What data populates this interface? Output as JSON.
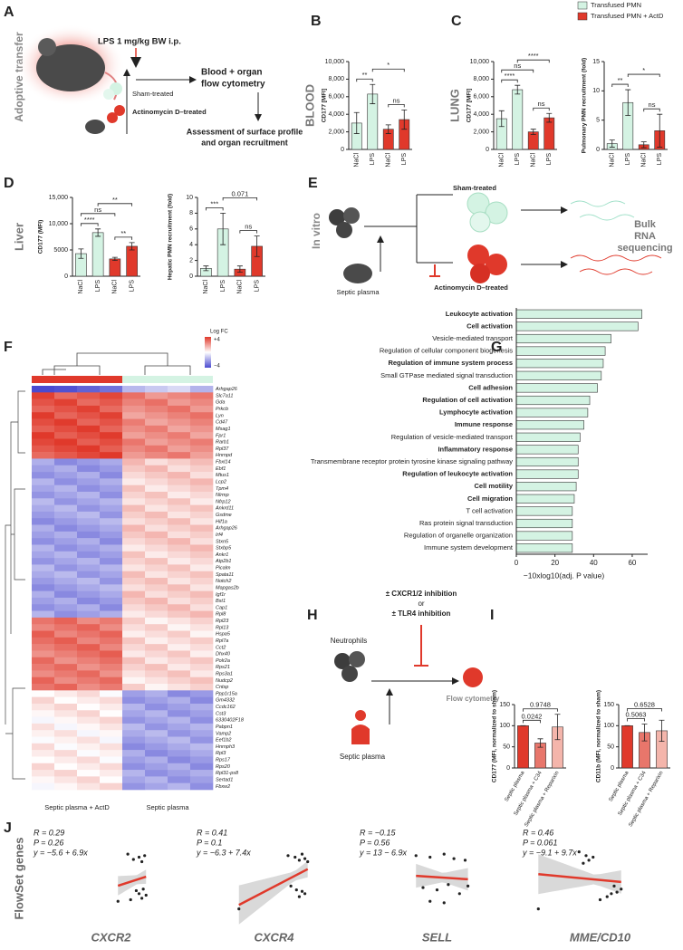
{
  "panel_labels": [
    "A",
    "B",
    "C",
    "D",
    "E",
    "F",
    "G",
    "H",
    "I",
    "J"
  ],
  "legend": {
    "series": [
      {
        "name": "Transfused PMN",
        "color": "#d4f3e3"
      },
      {
        "name": "Transfused PMN + ActD",
        "color": "#e0392b"
      }
    ]
  },
  "schematic_a": {
    "side_title": "Adoptive transfer",
    "injection": "LPS 1 mg/kg BW i.p.",
    "readout": [
      "Blood + organ",
      "flow cytometry"
    ],
    "sham": "Sham-treated",
    "actd": "Actinomycin D–treated",
    "assessment": [
      "Assessment of surface profile",
      "and organ recruitment"
    ]
  },
  "schematic_e": {
    "side_title": "In vitro",
    "sham": "Sham-treated",
    "plasma": "Septic plasma",
    "actd": "Actinomycin D–treated",
    "result": [
      "Bulk",
      "RNA",
      "sequencing"
    ]
  },
  "heatmap": {
    "legend_title": "Log FC",
    "legend_max": "+4",
    "legend_min": "−4",
    "genes": [
      "Arhgap26",
      "Slc7a11",
      "Gda",
      "Prkcb",
      "Lyn",
      "Cd47",
      "Msag1",
      "Fpr1",
      "Rarb1",
      "Rpl37",
      "Hnrnpd",
      "Fbxl14",
      "Ebf1",
      "Mtus1",
      "Lcp2",
      "Tpm4",
      "Nlrmp",
      "Nfrp12",
      "Ankrd11",
      "Gsdme",
      "Hif1a",
      "Arhgap26",
      "Irf4",
      "Stxn5",
      "Stxbp5",
      "Ankr1",
      "Atp2b1",
      "Picalm",
      "Spata11",
      "Notch2",
      "Mapgas2b",
      "Igf1r",
      "Bst1",
      "Cap1",
      "Rpl8",
      "Rpl23",
      "Rpl13",
      "Hspa5",
      "Rpl7a",
      "Cct2",
      "Dhx40",
      "Polr2a",
      "Rps21",
      "Rps3a1",
      "Nudcp2",
      "Cntsp",
      "Ppp1r15a",
      "Gm4332",
      "Ccdc162",
      "Cst3",
      "6330402F18",
      "Pabpn1",
      "Vamp2",
      "Eef1b2",
      "Hnrnph3",
      "Rpl3",
      "Rps17",
      "Rps20",
      "Rpl31-ps8",
      "Sertad1",
      "Fbxw2"
    ],
    "groups": [
      "Septic plasma + ActD",
      "Septic plasma"
    ]
  },
  "schematic_h": {
    "treatment": [
      "± CXCR1/2 inhibition",
      "or",
      "± TLR4 inhibition"
    ],
    "cells": "Neutrophils",
    "plasma": "Septic plasma",
    "readout": "Flow cytometry"
  },
  "scatter_ylabel": "FlowSet genes",
  "chart_data": [
    {
      "type": "bar",
      "title": "BLOOD",
      "ylabel": "CD177 [MFI]",
      "categories": [
        "NaCl",
        "LPS",
        "NaCl",
        "LPS"
      ],
      "values": [
        3000,
        6300,
        2300,
        3400
      ],
      "errors": [
        1200,
        1100,
        500,
        1100
      ],
      "colors": [
        "#d4f3e3",
        "#d4f3e3",
        "#e0392b",
        "#e0392b"
      ],
      "ylim": [
        0,
        10000
      ],
      "yticks": [
        0,
        {
          "value": 2000,
          "label": "2,000"
        },
        {
          "value": 4000,
          "label": "4,000"
        },
        {
          "value": 6000,
          "label": "6,000"
        },
        {
          "value": 8000,
          "label": "8,000"
        },
        {
          "value": 10000,
          "label": "10,000"
        }
      ],
      "brackets": [
        {
          "text": "**",
          "pair": [
            0,
            1
          ]
        },
        {
          "text": "ns",
          "pair": [
            2,
            3
          ]
        },
        {
          "text": "*",
          "pair": [
            1,
            3
          ]
        }
      ]
    },
    {
      "type": "bar",
      "title": "LUNG",
      "ylabel": "CD177 [MFI]",
      "categories": [
        "NaCl",
        "LPS",
        "NaCl",
        "LPS"
      ],
      "values": [
        3500,
        6800,
        2000,
        3600
      ],
      "errors": [
        900,
        500,
        300,
        500
      ],
      "colors": [
        "#d4f3e3",
        "#d4f3e3",
        "#e0392b",
        "#e0392b"
      ],
      "ylim": [
        0,
        10000
      ],
      "yticks": [
        0,
        {
          "value": 2000,
          "label": "2,000"
        },
        {
          "value": 4000,
          "label": "4,000"
        },
        {
          "value": 6000,
          "label": "6,000"
        },
        {
          "value": 8000,
          "label": "8,000"
        },
        {
          "value": 10000,
          "label": "10,000"
        }
      ],
      "brackets": [
        {
          "text": "****",
          "pair": [
            0,
            1
          ]
        },
        {
          "text": "ns",
          "pair": [
            2,
            3
          ]
        },
        {
          "text": "ns",
          "pair": [
            0,
            2
          ]
        },
        {
          "text": "****",
          "pair": [
            1,
            3
          ]
        }
      ]
    },
    {
      "type": "bar",
      "ylabel": "Pulmonary PMN recruitment (fold)",
      "categories": [
        "NaCl",
        "LPS",
        "NaCl",
        "LPS"
      ],
      "values": [
        1,
        8,
        0.8,
        3.2
      ],
      "errors": [
        0.6,
        2.2,
        0.5,
        2.8
      ],
      "colors": [
        "#d4f3e3",
        "#d4f3e3",
        "#e0392b",
        "#e0392b"
      ],
      "ylim": [
        0,
        15
      ],
      "yticks": [
        0,
        5,
        10,
        15
      ],
      "brackets": [
        {
          "text": "**",
          "pair": [
            0,
            1
          ]
        },
        {
          "text": "ns",
          "pair": [
            2,
            3
          ]
        },
        {
          "text": "*",
          "pair": [
            1,
            3
          ]
        }
      ]
    },
    {
      "type": "bar",
      "title": "Liver",
      "ylabel": "CD177 (MFI)",
      "categories": [
        "NaCl",
        "LPS",
        "NaCl",
        "LPS"
      ],
      "values": [
        4300,
        8300,
        3300,
        5700
      ],
      "errors": [
        900,
        700,
        300,
        700
      ],
      "colors": [
        "#d4f3e3",
        "#d4f3e3",
        "#e0392b",
        "#e0392b"
      ],
      "ylim": [
        0,
        15000
      ],
      "yticks": [
        0,
        5000,
        {
          "value": 10000,
          "label": "10,000"
        },
        {
          "value": 15000,
          "label": "15,000"
        }
      ],
      "brackets": [
        {
          "text": "****",
          "pair": [
            0,
            1
          ]
        },
        {
          "text": "**",
          "pair": [
            2,
            3
          ]
        },
        {
          "text": "ns",
          "pair": [
            0,
            2
          ]
        },
        {
          "text": "**",
          "pair": [
            1,
            3
          ]
        }
      ]
    },
    {
      "type": "bar",
      "ylabel": "Hepatic PMN recruitment (fold)",
      "categories": [
        "NaCl",
        "LPS",
        "NaCl",
        "LPS"
      ],
      "values": [
        1,
        6,
        0.9,
        3.8
      ],
      "errors": [
        0.3,
        2,
        0.4,
        1.3
      ],
      "colors": [
        "#d4f3e3",
        "#d4f3e3",
        "#e0392b",
        "#e0392b"
      ],
      "ylim": [
        0,
        10
      ],
      "yticks": [
        0,
        2,
        4,
        6,
        8,
        10
      ],
      "brackets": [
        {
          "text": "***",
          "pair": [
            0,
            1
          ]
        },
        {
          "text": "ns",
          "pair": [
            2,
            3
          ]
        },
        {
          "text": "0.071",
          "pair": [
            1,
            3
          ]
        }
      ]
    },
    {
      "type": "hbar",
      "xlabel": "−10xlog10(adj. P value)",
      "categories": [
        "Leukocyte activation",
        "Cell activation",
        "Vesicle-mediated transport",
        "Regulation of cellular component biogenesis",
        "Regulation of immune system process",
        "Small GTPase mediated signal transduction",
        "Cell adhesion",
        "Regulation of cell activation",
        "Lymphocyte activation",
        "Immune response",
        "Regulation of vesicle-mediated transport",
        "Inflammatory response",
        "Transmembrane receptor protein tyrosine kinase signaling pathway",
        "Regulation of leukocyte activation",
        "Cell motility",
        "Cell migration",
        "T cell activation",
        "Ras protein signal transduction",
        "Regulation of organelle organization",
        "Immune system development"
      ],
      "values": [
        65,
        63,
        49,
        46,
        45,
        44,
        42,
        38,
        37,
        35,
        33,
        32,
        32,
        32,
        31,
        30,
        29,
        29,
        29,
        29
      ],
      "bold": [
        true,
        true,
        false,
        false,
        true,
        false,
        true,
        true,
        true,
        true,
        false,
        true,
        false,
        true,
        true,
        true,
        false,
        false,
        false,
        false
      ],
      "color": "#d4f3e3",
      "xlim": [
        0,
        68
      ],
      "xticks": [
        0,
        20,
        40,
        60
      ]
    },
    {
      "type": "bar",
      "ylabel": "CD177 (MFI, normalized to sham)",
      "categories": [
        "Septic plasma",
        "Septic plasma + C34",
        "Septic plasma + Reparixin"
      ],
      "values": [
        100,
        59,
        97
      ],
      "errors": [
        0,
        10,
        30
      ],
      "colors": [
        "#e0392b",
        "#e8766b",
        "#f4b5ab"
      ],
      "ylim": [
        0,
        150
      ],
      "yticks": [
        0,
        50,
        100,
        150
      ],
      "brackets": [
        {
          "text": "0.0242",
          "pair": [
            0,
            1
          ]
        },
        {
          "text": "0.9748",
          "pair": [
            0,
            2
          ]
        }
      ]
    },
    {
      "type": "bar",
      "ylabel": "CD11b (MFI, normalized to sham)",
      "categories": [
        "Septic plasma",
        "Septic plasma + C34",
        "Septic plasma + Reparixin"
      ],
      "values": [
        100,
        84,
        88
      ],
      "errors": [
        0,
        20,
        25
      ],
      "colors": [
        "#e0392b",
        "#e8766b",
        "#f4b5ab"
      ],
      "ylim": [
        0,
        150
      ],
      "yticks": [
        0,
        50,
        100,
        150
      ],
      "brackets": [
        {
          "text": "0.5063",
          "pair": [
            0,
            1
          ]
        },
        {
          "text": "0.6528",
          "pair": [
            0,
            2
          ]
        }
      ]
    },
    {
      "type": "scatter",
      "xlabel": "CXCR2",
      "stats": [
        "R = 0.29",
        "P = 0.26",
        "y = −5.6 + 6.9x"
      ],
      "x": [
        0.62,
        0.66,
        0.7,
        0.72,
        0.74,
        0.68,
        0.7,
        0.73,
        0.75,
        0.72,
        0.64,
        0.55
      ],
      "y": [
        0.82,
        0.75,
        0.78,
        0.72,
        0.8,
        0.34,
        0.3,
        0.36,
        0.28,
        0.24,
        0.22,
        0.2
      ],
      "xlim": [
        0,
        1
      ],
      "ylim": [
        0,
        1
      ],
      "line_color": "#e0392b"
    },
    {
      "type": "scatter",
      "xlabel": "CXCR4",
      "stats": [
        "R = 0.41",
        "P = 0.1",
        "y = −6.3 + 7.4x"
      ],
      "x": [
        0.6,
        0.65,
        0.68,
        0.7,
        0.72,
        0.74,
        0.62,
        0.66,
        0.7,
        0.72,
        0.68,
        0.25
      ],
      "y": [
        0.8,
        0.78,
        0.74,
        0.82,
        0.76,
        0.72,
        0.4,
        0.35,
        0.33,
        0.3,
        0.26,
        0.1
      ],
      "xlim": [
        0,
        1
      ],
      "ylim": [
        0,
        1
      ],
      "line_color": "#e0392b"
    },
    {
      "type": "scatter",
      "xlabel": "SELL",
      "stats": [
        "R = −0.15",
        "P = 0.56",
        "y = 13 − 6.9x"
      ],
      "x": [
        0.35,
        0.45,
        0.55,
        0.62,
        0.7,
        0.4,
        0.5,
        0.58,
        0.66,
        0.72,
        0.45,
        0.55
      ],
      "y": [
        0.8,
        0.78,
        0.82,
        0.76,
        0.74,
        0.38,
        0.35,
        0.42,
        0.3,
        0.4,
        0.2,
        0.18
      ],
      "xlim": [
        0,
        1
      ],
      "ylim": [
        0,
        1
      ],
      "line_color": "#e0392b"
    },
    {
      "type": "scatter",
      "xlabel": "MME/CD10",
      "stats": [
        "R = 0.46",
        "P = 0.061",
        "y = −9.1 + 9.7x"
      ],
      "x": [
        0.35,
        0.4,
        0.45,
        0.42,
        0.38,
        0.6,
        0.65,
        0.62,
        0.58,
        0.55,
        0.06,
        0.5
      ],
      "y": [
        0.85,
        0.8,
        0.78,
        0.74,
        0.7,
        0.4,
        0.36,
        0.32,
        0.3,
        0.26,
        0.1,
        0.22
      ],
      "xlim": [
        0,
        1
      ],
      "ylim": [
        0,
        1
      ],
      "line_color": "#e0392b"
    }
  ]
}
